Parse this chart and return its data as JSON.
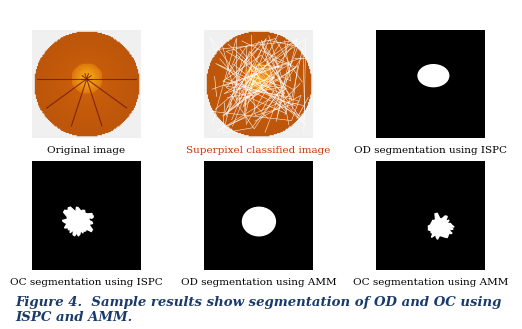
{
  "bg_color": "#ffffff",
  "row1_labels": [
    "Original image",
    "Superpixel classified image",
    "OD segmentation using ISPC"
  ],
  "row2_labels": [
    "OC segmentation using ISPC",
    "OD segmentation using AMM",
    "OC segmentation using AMM"
  ],
  "row1_label_colors": [
    "#000000",
    "#cc3300",
    "#000000"
  ],
  "row2_label_colors": [
    "#000000",
    "#000000",
    "#000000"
  ],
  "caption": "Figure 4.  Sample results show segmentation of OD and OC using\nISPC and AMM.",
  "caption_color": "#1a3a6b",
  "label_fontsize": 7.5,
  "caption_fontsize": 9.5,
  "fig_width": 5.22,
  "fig_height": 3.29
}
